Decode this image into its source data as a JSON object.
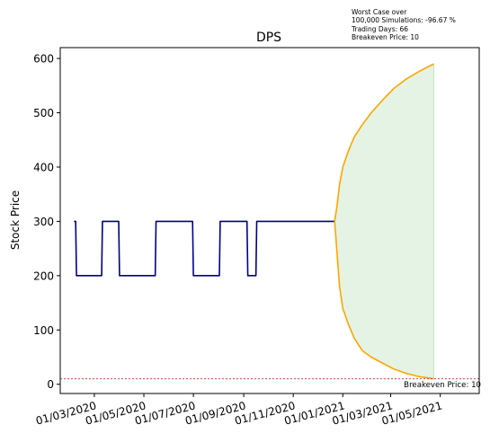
{
  "annotation": {
    "line1": "Worst Case over",
    "line2": "100,000 Simulations: -96.67 %",
    "line3": "Trading Days: 66",
    "line4": "Breakeven Price: 10"
  },
  "chart_data": {
    "type": "line",
    "title": "DPS",
    "xlabel": "",
    "ylabel": "Stock Price",
    "ylim": [
      -17,
      620
    ],
    "yticks": [
      0,
      100,
      200,
      300,
      400,
      500,
      600
    ],
    "xticks": [
      "01/03/2020",
      "01/05/2020",
      "01/07/2020",
      "01/09/2020",
      "01/11/2020",
      "01/01/2021",
      "01/03/2021",
      "01/05/2021"
    ],
    "xtick_dates": [
      "2020-03-01",
      "2020-05-01",
      "2020-07-01",
      "2020-09-01",
      "2020-11-01",
      "2021-01-01",
      "2021-03-01",
      "2021-05-01"
    ],
    "xlim": [
      "2020-01-19",
      "2021-06-18"
    ],
    "grid": false,
    "breakeven": {
      "value": 10,
      "label": "Breakeven Price: 10",
      "color": "#d62728"
    },
    "series": [
      {
        "role": "history",
        "color": "#00008b",
        "points": [
          [
            "2020-02-05",
            300
          ],
          [
            "2020-02-07",
            300
          ],
          [
            "2020-02-08",
            200
          ],
          [
            "2020-03-10",
            200
          ],
          [
            "2020-03-11",
            300
          ],
          [
            "2020-03-31",
            300
          ],
          [
            "2020-04-01",
            200
          ],
          [
            "2020-05-15",
            200
          ],
          [
            "2020-05-16",
            300
          ],
          [
            "2020-06-30",
            300
          ],
          [
            "2020-07-01",
            200
          ],
          [
            "2020-08-02",
            200
          ],
          [
            "2020-08-03",
            300
          ],
          [
            "2020-09-05",
            300
          ],
          [
            "2020-09-06",
            200
          ],
          [
            "2020-09-16",
            200
          ],
          [
            "2020-09-17",
            300
          ],
          [
            "2020-12-22",
            300
          ]
        ]
      },
      {
        "role": "upper-bound",
        "color": "#ffa500",
        "points": [
          [
            "2020-12-22",
            300
          ],
          [
            "2020-12-25",
            330
          ],
          [
            "2020-12-28",
            368
          ],
          [
            "2021-01-01",
            400
          ],
          [
            "2021-01-08",
            430
          ],
          [
            "2021-01-15",
            455
          ],
          [
            "2021-01-25",
            478
          ],
          [
            "2021-02-05",
            500
          ],
          [
            "2021-02-20",
            525
          ],
          [
            "2021-03-05",
            545
          ],
          [
            "2021-03-20",
            562
          ],
          [
            "2021-04-05",
            576
          ],
          [
            "2021-04-15",
            584
          ],
          [
            "2021-04-23",
            590
          ]
        ]
      },
      {
        "role": "lower-bound",
        "color": "#ffa500",
        "points": [
          [
            "2020-12-22",
            300
          ],
          [
            "2020-12-25",
            240
          ],
          [
            "2020-12-28",
            180
          ],
          [
            "2021-01-01",
            140
          ],
          [
            "2021-01-08",
            110
          ],
          [
            "2021-01-15",
            85
          ],
          [
            "2021-01-25",
            62
          ],
          [
            "2021-02-05",
            50
          ],
          [
            "2021-02-20",
            38
          ],
          [
            "2021-03-05",
            28
          ],
          [
            "2021-03-20",
            20
          ],
          [
            "2021-04-05",
            14
          ],
          [
            "2021-04-15",
            12
          ],
          [
            "2021-04-23",
            10
          ]
        ]
      }
    ],
    "band_color": "#2ca02c"
  }
}
